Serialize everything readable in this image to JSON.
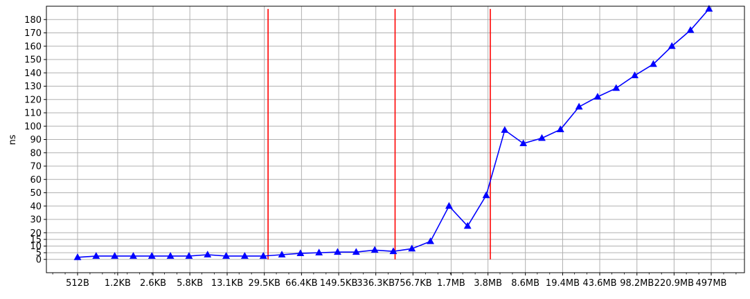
{
  "chart_data": {
    "type": "line",
    "title": "",
    "xlabel": "",
    "ylabel": "ns",
    "x_scale": "log2",
    "x_unit": "bytes",
    "x_tick_values": [
      512,
      1229,
      2662,
      5940,
      13414,
      30208,
      67994,
      153088,
      344371,
      774861,
      1782579,
      3984589,
      9017753,
      20342374,
      45717504,
      102970163,
      231630438,
      521142272
    ],
    "x_tick_labels": [
      "512B",
      "1.2KB",
      "2.6KB",
      "5.8KB",
      "13.1KB",
      "29.5KB",
      "66.4KB",
      "149.5KB",
      "336.3KB",
      "756.7KB",
      "1.7MB",
      "3.8MB",
      "8.6MB",
      "19.4MB",
      "43.6MB",
      "98.2MB",
      "220.9MB",
      "497MB"
    ],
    "y_ticks": [
      0,
      5,
      10,
      15,
      20,
      30,
      40,
      50,
      60,
      70,
      80,
      90,
      100,
      110,
      120,
      130,
      140,
      150,
      160,
      170,
      180
    ],
    "ylim": [
      -10,
      190
    ],
    "grid": true,
    "series": [
      {
        "color": "#0000ff",
        "marker": "triangle-up",
        "x": [
          512,
          768,
          1152,
          1728,
          2592,
          3888,
          5832,
          8748,
          13122,
          19683,
          29525,
          44287,
          66430,
          99645,
          149468,
          224202,
          336303,
          504455,
          756682,
          1135023,
          1702535,
          2553802,
          3830703,
          5746055,
          8619082,
          12928623,
          19392935,
          29089402,
          43634103,
          65451155,
          98176732,
          147265098,
          220897648,
          331346471,
          497019707
        ],
        "values": [
          1.5,
          2.5,
          2.5,
          2.5,
          2.5,
          2.5,
          2.5,
          3.5,
          2.5,
          2.5,
          2.5,
          3.5,
          4.5,
          5,
          5.5,
          5.5,
          7,
          6,
          8,
          13.5,
          40,
          25,
          48,
          97,
          87,
          91,
          97.5,
          114.5,
          122,
          128.5,
          138,
          146.5,
          160,
          172,
          188
        ]
      }
    ],
    "vertical_markers": {
      "color": "#ff0000",
      "x": [
        32768,
        524288,
        4194304
      ],
      "y_range": [
        0,
        188
      ]
    }
  }
}
